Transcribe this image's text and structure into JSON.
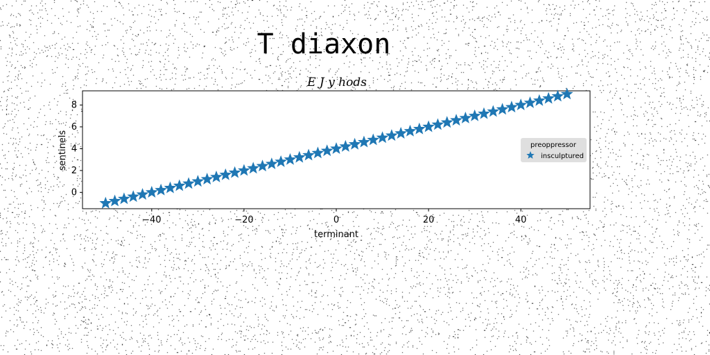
{
  "figure": {
    "suptitle": "T diaxon"
  },
  "chart_data": {
    "type": "scatter",
    "title": "E J y hods",
    "xlabel": "terminant",
    "ylabel": "sentinels",
    "xlim": [
      -55,
      55
    ],
    "ylim": [
      -1.5,
      9.3
    ],
    "xticks": [
      -40,
      -20,
      0,
      20,
      40
    ],
    "yticks": [
      0,
      2,
      4,
      6,
      8
    ],
    "grid": false,
    "legend": {
      "title": "preoppressor",
      "placement": "center-right"
    },
    "series": [
      {
        "name": "insculptured",
        "marker": "star",
        "color": "#1f77b4",
        "x": [
          -50,
          -48,
          -46,
          -44,
          -42,
          -40,
          -38,
          -36,
          -34,
          -32,
          -30,
          -28,
          -26,
          -24,
          -22,
          -20,
          -18,
          -16,
          -14,
          -12,
          -10,
          -8,
          -6,
          -4,
          -2,
          0,
          2,
          4,
          6,
          8,
          10,
          12,
          14,
          16,
          18,
          20,
          22,
          24,
          26,
          28,
          30,
          32,
          34,
          36,
          38,
          40,
          42,
          44,
          46,
          48,
          50
        ],
        "y": [
          -1.0,
          -0.8,
          -0.6,
          -0.4,
          -0.2,
          0.0,
          0.2,
          0.4,
          0.6,
          0.8,
          1.0,
          1.2,
          1.4,
          1.6,
          1.8,
          2.0,
          2.2,
          2.4,
          2.6,
          2.8,
          3.0,
          3.2,
          3.4,
          3.6,
          3.8,
          4.0,
          4.2,
          4.4,
          4.6,
          4.8,
          5.0,
          5.2,
          5.4,
          5.6,
          5.8,
          6.0,
          6.2,
          6.4,
          6.6,
          6.8,
          7.0,
          7.2,
          7.4,
          7.6,
          7.8,
          8.0,
          8.2,
          8.4,
          8.6,
          8.8,
          9.0
        ]
      }
    ]
  }
}
